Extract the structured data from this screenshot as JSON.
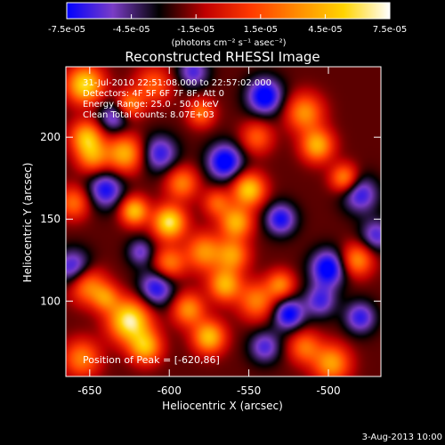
{
  "chart_data": {
    "type": "heatmap",
    "title": "Reconstructed RHESSI Image",
    "xlabel": "Heliocentric X (arcsec)",
    "ylabel": "Heliocentric Y (arcsec)",
    "xlim": [
      -665,
      -467
    ],
    "ylim": [
      54,
      243
    ],
    "x_ticks": [
      {
        "value": -650,
        "label": "-650"
      },
      {
        "value": -600,
        "label": "-600"
      },
      {
        "value": -550,
        "label": "-550"
      },
      {
        "value": -500,
        "label": "-500"
      }
    ],
    "y_ticks": [
      {
        "value": 100,
        "label": "100"
      },
      {
        "value": 150,
        "label": "150"
      },
      {
        "value": 200,
        "label": "200"
      }
    ],
    "colorbar": {
      "range": [
        -7.5e-05,
        7.5e-05
      ],
      "ticks": [
        {
          "value": -7.5e-05,
          "label": "-7.5e-05"
        },
        {
          "value": -4.5e-05,
          "label": "-4.5e-05"
        },
        {
          "value": -1.5e-05,
          "label": "-1.5e-05"
        },
        {
          "value": 1.5e-05,
          "label": "1.5e-05"
        },
        {
          "value": 4.5e-05,
          "label": "4.5e-05"
        },
        {
          "value": 7.5e-05,
          "label": "7.5e-05"
        }
      ],
      "units_label": "(photons cm⁻² s⁻¹ asec⁻²)",
      "stops": [
        "#0000ff",
        "#7a3cc6",
        "#000000",
        "#c00000",
        "#ff3a00",
        "#ff8c00",
        "#ffd400",
        "#ffffff"
      ]
    },
    "annotations": [
      "31-Jul-2010 22:51:08.000 to 22:57:02.000",
      "Detectors: 4F 5F 6F 7F 8F, Att 0",
      "Energy Range: 25.0 - 50.0 keV",
      "Clean     Total counts: 8.07E+03"
    ],
    "peak_label": "Position of Peak = [-620,86]",
    "peak_position": [
      -620,
      86
    ],
    "sources": [
      [
        -653,
        232,
        8,
        8e-05
      ],
      [
        -652,
        200,
        7,
        6.5e-05
      ],
      [
        -648,
        188,
        7,
        5e-05
      ],
      [
        -640,
        168,
        8,
        -5e-05
      ],
      [
        -635,
        212,
        7,
        -4e-05
      ],
      [
        -628,
        190,
        8,
        6.5e-05
      ],
      [
        -625,
        220,
        6,
        5e-05
      ],
      [
        -622,
        155,
        6,
        7e-05
      ],
      [
        -610,
        232,
        8,
        4e-05
      ],
      [
        -606,
        190,
        8,
        -4.5e-05
      ],
      [
        -600,
        148,
        7,
        8.5e-05
      ],
      [
        -592,
        172,
        7,
        5e-05
      ],
      [
        -580,
        215,
        6,
        4.5e-05
      ],
      [
        -578,
        130,
        8,
        5.5e-05
      ],
      [
        -565,
        185,
        8,
        -6e-05
      ],
      [
        -558,
        148,
        7,
        6.5e-05
      ],
      [
        -550,
        168,
        7,
        7.5e-05
      ],
      [
        -540,
        225,
        8,
        -6e-05
      ],
      [
        -530,
        150,
        7,
        -5e-05
      ],
      [
        -515,
        215,
        8,
        5.5e-05
      ],
      [
        -507,
        195,
        7,
        6.5e-05
      ],
      [
        -500,
        120,
        8,
        -6e-05
      ],
      [
        -490,
        175,
        6,
        5.5e-05
      ],
      [
        -480,
        165,
        8,
        -4.5e-05
      ],
      [
        -480,
        90,
        7,
        -4.5e-05
      ],
      [
        -660,
        160,
        7,
        4.5e-05
      ],
      [
        -660,
        120,
        8,
        -5e-05
      ],
      [
        -652,
        110,
        8,
        5.5e-05
      ],
      [
        -655,
        65,
        8,
        5e-05
      ],
      [
        -640,
        102,
        6,
        4.5e-05
      ],
      [
        -625,
        88,
        9,
        9e-05
      ],
      [
        -615,
        72,
        7,
        6.5e-05
      ],
      [
        -608,
        108,
        8,
        -5e-05
      ],
      [
        -600,
        123,
        7,
        5e-05
      ],
      [
        -588,
        95,
        7,
        5.5e-05
      ],
      [
        -575,
        78,
        7,
        7e-05
      ],
      [
        -565,
        110,
        7,
        6.5e-05
      ],
      [
        -560,
        128,
        7,
        5.5e-05
      ],
      [
        -545,
        100,
        8,
        5e-05
      ],
      [
        -540,
        72,
        7,
        -4e-05
      ],
      [
        -530,
        110,
        6,
        5e-05
      ],
      [
        -525,
        92,
        7,
        -5.5e-05
      ],
      [
        -515,
        72,
        7,
        4.5e-05
      ],
      [
        -505,
        100,
        7,
        -4e-05
      ],
      [
        -498,
        62,
        8,
        6e-05
      ],
      [
        -482,
        125,
        7,
        5.5e-05
      ],
      [
        -470,
        140,
        7,
        -4e-05
      ],
      [
        -585,
        240,
        7,
        -4e-05
      ],
      [
        -545,
        200,
        7,
        4e-05
      ],
      [
        -618,
        130,
        6,
        -3.5e-05
      ],
      [
        -570,
        160,
        6,
        4e-05
      ]
    ]
  },
  "footer": {
    "date": "3-Aug-2013 10:00"
  }
}
